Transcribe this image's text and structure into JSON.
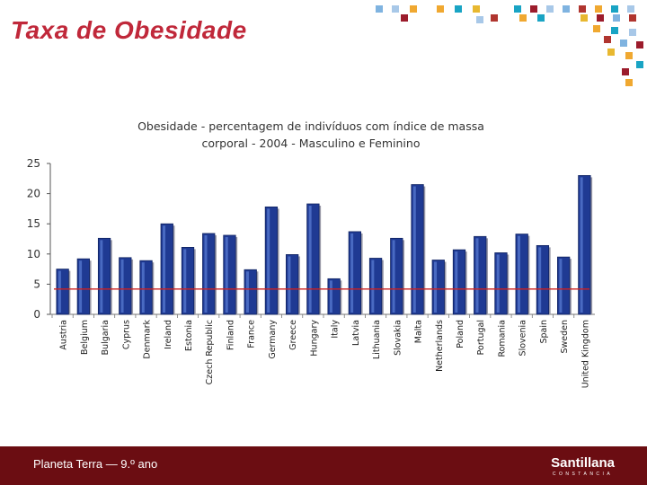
{
  "slide": {
    "title": "Taxa de Obesidade",
    "footer_text": "Planeta Terra — 9.º ano",
    "logo_text": "Santillana",
    "logo_subtext": "CONSTANCIA"
  },
  "colors": {
    "title": "#c0283a",
    "bar": "#1f3a93",
    "bar_highlight": "#5b7fd6",
    "reference_line": "#cc2222",
    "footer": "#6b0d12",
    "mosaic": [
      "#7fb3e0",
      "#f0a830",
      "#a8c8e8",
      "#b0352f",
      "#19a4c4",
      "#e8b830",
      "#9c1c2c"
    ]
  },
  "chart_data": {
    "type": "bar",
    "title_lines": [
      "Obesidade - percentagem de indivíduos com índice de massa",
      "corporal  - 2004 - Masculino e Feminino"
    ],
    "categories": [
      "Austria",
      "Belgium",
      "Bulgaria",
      "Cyprus",
      "Denmark",
      "Ireland",
      "Estonia",
      "Czech Republic",
      "Finland",
      "France",
      "Germany",
      "Greece",
      "Hungary",
      "Italy",
      "Latvia",
      "Lithuania",
      "Slovakia",
      "Malta",
      "Netherlands",
      "Poland",
      "Portugal",
      "Romania",
      "Slovenia",
      "Spain",
      "Sweden",
      "United Kingdom"
    ],
    "values": [
      7.5,
      9.2,
      12.6,
      9.4,
      8.9,
      15.0,
      11.1,
      13.4,
      13.1,
      7.4,
      17.8,
      9.9,
      18.3,
      5.9,
      13.7,
      9.3,
      12.6,
      21.5,
      9.0,
      10.7,
      12.9,
      10.2,
      13.3,
      11.4,
      9.5,
      23.0
    ],
    "reference_value": 4.2,
    "yticks": [
      0,
      5,
      10,
      15,
      20,
      25
    ],
    "ylim": [
      0,
      25
    ],
    "xlabel": "",
    "ylabel": ""
  }
}
